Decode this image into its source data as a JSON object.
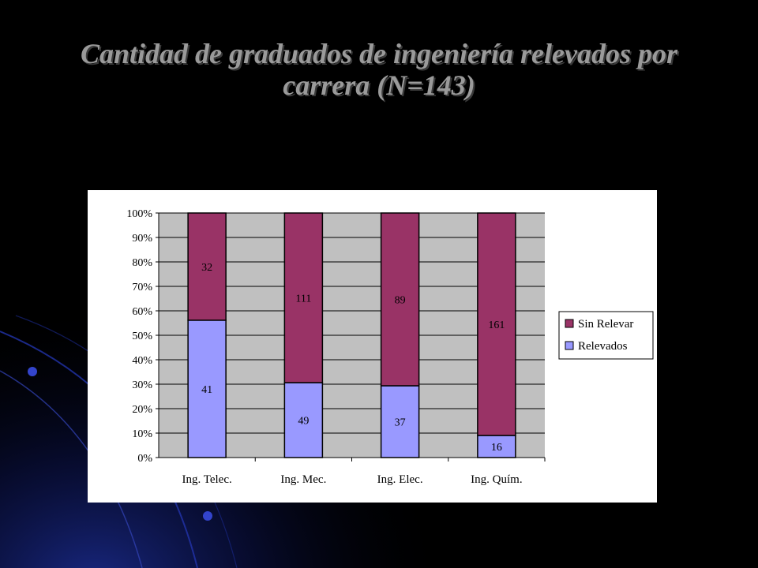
{
  "title": "Cantidad de graduados de ingeniería relevados por carrera (N=143)",
  "chart_data": {
    "type": "bar",
    "stacked": "percent",
    "categories": [
      "Ing. Telec.",
      "Ing. Mec.",
      "Ing. Elec.",
      "Ing. Quím."
    ],
    "series": [
      {
        "name": "Relevados",
        "values": [
          41,
          49,
          37,
          16
        ],
        "color": "#9999ff"
      },
      {
        "name": "Sin Relevar",
        "values": [
          32,
          111,
          89,
          161
        ],
        "color": "#993366"
      }
    ],
    "y_ticks": [
      "0%",
      "10%",
      "20%",
      "30%",
      "40%",
      "50%",
      "60%",
      "70%",
      "80%",
      "90%",
      "100%"
    ],
    "ylim": [
      0,
      100
    ],
    "grid": true,
    "plot_background": "#c0c0c0",
    "legend_position": "right"
  }
}
